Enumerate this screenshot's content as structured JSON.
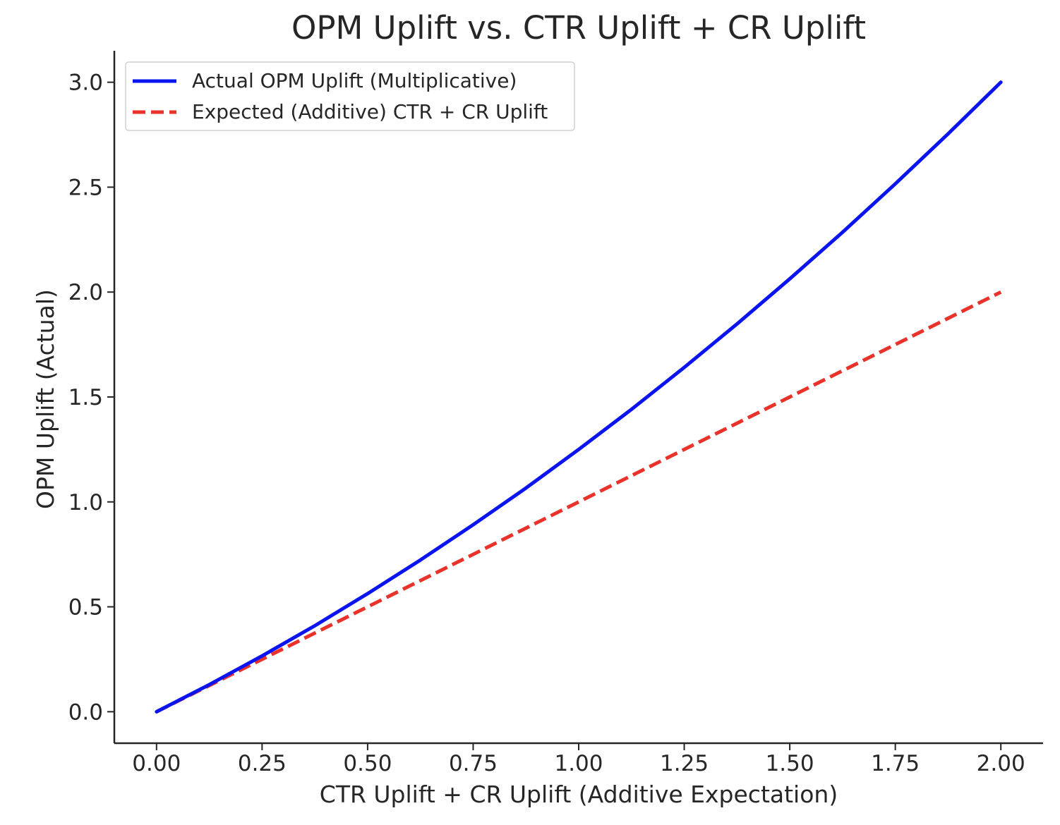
{
  "chart_data": {
    "type": "line",
    "title": "OPM Uplift vs. CTR Uplift + CR Uplift",
    "xlabel": "CTR Uplift + CR Uplift (Additive Expectation)",
    "ylabel": "OPM Uplift (Actual)",
    "xlim": [
      -0.1,
      2.1
    ],
    "ylim": [
      -0.15,
      3.15
    ],
    "x_ticks": [
      0.0,
      0.25,
      0.5,
      0.75,
      1.0,
      1.25,
      1.5,
      1.75,
      2.0
    ],
    "x_tick_labels": [
      "0.00",
      "0.25",
      "0.50",
      "0.75",
      "1.00",
      "1.25",
      "1.50",
      "1.75",
      "2.00"
    ],
    "y_ticks": [
      0.0,
      0.5,
      1.0,
      1.5,
      2.0,
      2.5,
      3.0
    ],
    "y_tick_labels": [
      "0.0",
      "0.5",
      "1.0",
      "1.5",
      "2.0",
      "2.5",
      "3.0"
    ],
    "grid": false,
    "legend": "top-left",
    "x": [
      0.0,
      0.125,
      0.25,
      0.375,
      0.5,
      0.625,
      0.75,
      0.875,
      1.0,
      1.125,
      1.25,
      1.375,
      1.5,
      1.625,
      1.75,
      1.875,
      2.0
    ],
    "series": [
      {
        "name": "Actual OPM Uplift (Multiplicative)",
        "color": "#0a14f0",
        "style": "solid",
        "values": [
          0.0,
          0.129,
          0.266,
          0.41,
          0.563,
          0.723,
          0.891,
          1.066,
          1.25,
          1.441,
          1.641,
          1.848,
          2.063,
          2.285,
          2.516,
          2.754,
          3.0
        ]
      },
      {
        "name": "Expected (Additive) CTR + CR Uplift",
        "color": "#e8322a",
        "style": "dashed",
        "values": [
          0.0,
          0.125,
          0.25,
          0.375,
          0.5,
          0.625,
          0.75,
          0.875,
          1.0,
          1.125,
          1.25,
          1.375,
          1.5,
          1.625,
          1.75,
          1.875,
          2.0
        ]
      }
    ]
  }
}
